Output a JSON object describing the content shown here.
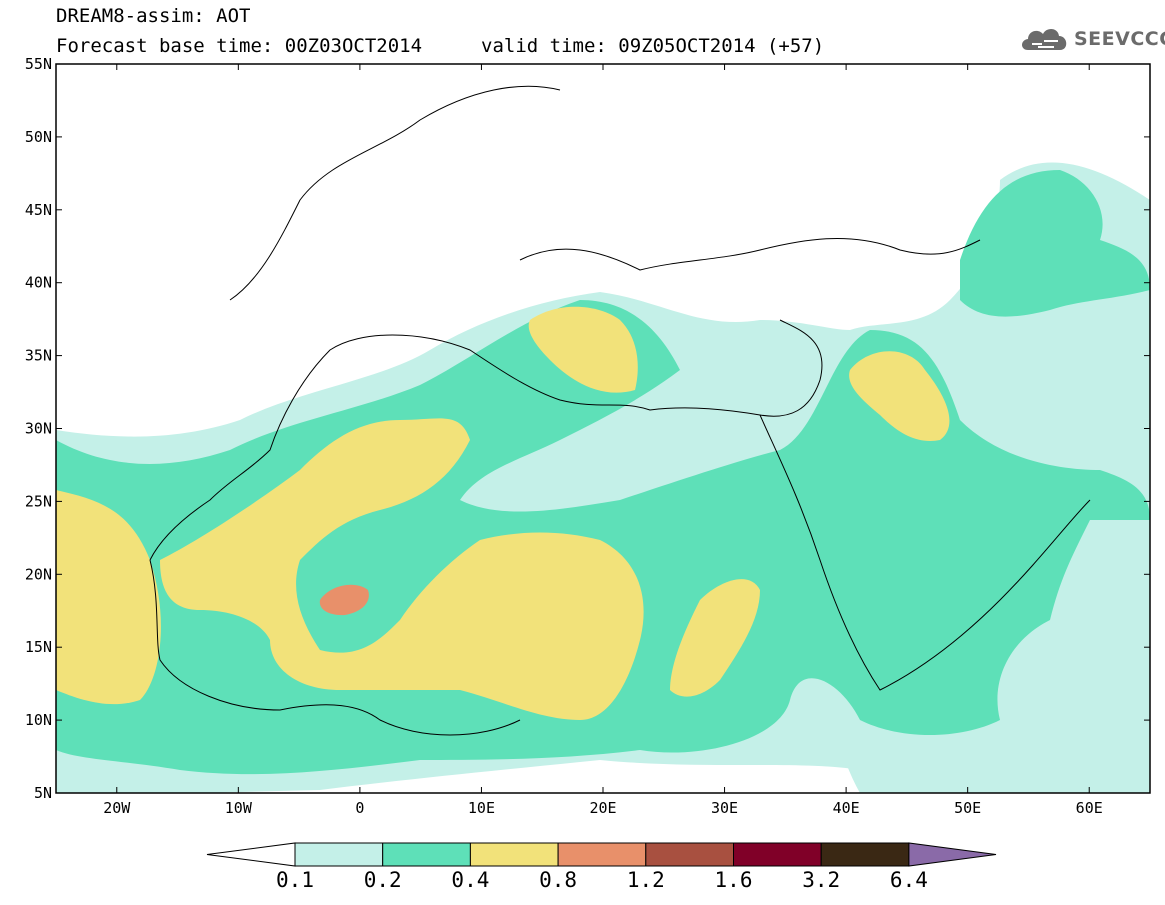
{
  "header": {
    "title_line1": "DREAM8-assim: AOT",
    "title_line2": "Forecast base time: 00Z03OCT2014",
    "valid_time": "valid time: 09Z05OCT2014 (+57)"
  },
  "logo": {
    "text": "SEEVCCC",
    "icon": "cloud-icon"
  },
  "map": {
    "projection": "lat-lon",
    "lon_range": [
      -25,
      65
    ],
    "lat_range": [
      5,
      55
    ],
    "lon_ticks": [
      "20W",
      "10W",
      "0",
      "10E",
      "20E",
      "30E",
      "40E",
      "50E",
      "60E"
    ],
    "lat_ticks": [
      "55N",
      "50N",
      "45N",
      "40N",
      "35N",
      "30N",
      "25N",
      "20N",
      "15N",
      "10N",
      "5N"
    ]
  },
  "colorbar": {
    "levels": [
      "0.1",
      "0.2",
      "0.4",
      "0.8",
      "1.2",
      "1.6",
      "3.2",
      "6.4"
    ],
    "colors": [
      "#c4f0e8",
      "#5ee0b8",
      "#f2e27a",
      "#e8906a",
      "#a85040",
      "#800028",
      "#3a2814",
      "#8a6aa8"
    ],
    "under_color": "#ffffff"
  }
}
